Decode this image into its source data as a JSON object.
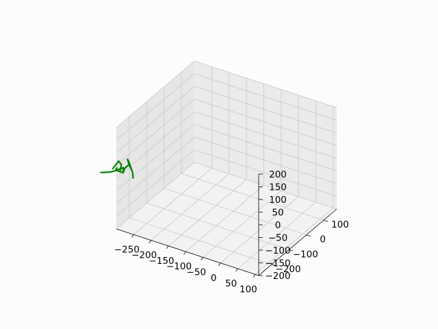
{
  "chart_data": {
    "type": "line3d",
    "title": "",
    "xlabel": "",
    "ylabel": "",
    "zlabel": "",
    "xlim": [
      -300,
      110
    ],
    "ylim": [
      -275,
      175
    ],
    "zlim": [
      -200,
      200
    ],
    "x_ticks": [
      -250,
      -200,
      -150,
      -100,
      -50,
      0,
      50,
      100
    ],
    "y_ticks": [
      -200,
      -100,
      0,
      100
    ],
    "z_ticks": [
      -200,
      -150,
      -100,
      -50,
      0,
      50,
      100,
      150,
      200
    ],
    "x_tick_labels": [
      "−250",
      "−200",
      "−150",
      "−100",
      "−50",
      "0",
      "50",
      "100"
    ],
    "y_tick_labels": [
      "−200",
      "−100",
      "0",
      "100"
    ],
    "z_tick_labels": [
      "−200",
      "−150",
      "−100",
      "−50",
      "0",
      "50",
      "100",
      "150",
      "200"
    ],
    "grid": true,
    "series": [
      {
        "color": "#008000",
        "segments": [
          [
            [
              -345,
              -278,
              4
            ],
            [
              -320,
              -275,
              15
            ],
            [
              -305,
              -272,
              25
            ],
            [
              -300,
              -270,
              40
            ]
          ],
          [
            [
              -318,
              -262,
              20
            ],
            [
              -300,
              -262,
              60
            ],
            [
              -292,
              -262,
              50
            ],
            [
              -296,
              -262,
              20
            ]
          ],
          [
            [
              -307,
              -262,
              20
            ],
            [
              -287,
              -262,
              40
            ],
            [
              -287,
              -262,
              20
            ],
            [
              -307,
              -262,
              20
            ]
          ],
          [
            [
              -287,
              -262,
              20
            ],
            [
              -282,
              -262,
              40
            ],
            [
              -270,
              -262,
              60
            ],
            [
              -275,
              -262,
              80
            ],
            [
              -270,
              -262,
              70
            ],
            [
              -262,
              -262,
              40
            ],
            [
              -260,
              -262,
              35
            ],
            [
              -258,
              -262,
              10
            ]
          ],
          [
            [
              -270,
              -262,
              60
            ],
            [
              -262,
              -262,
              40
            ]
          ]
        ]
      }
    ]
  }
}
